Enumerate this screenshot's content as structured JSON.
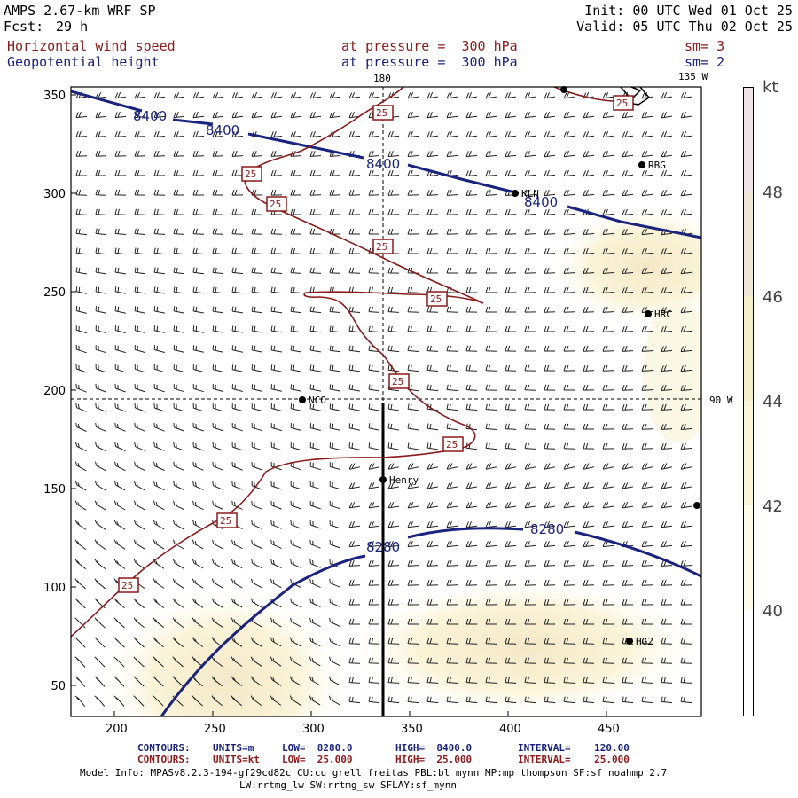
{
  "header": {
    "model": "AMPS 2.67-km WRF SP",
    "fcst_label": "Fcst:",
    "fcst_value": "29 h",
    "init": "Init: 00 UTC Wed 01 Oct 25",
    "valid": "Valid: 05 UTC Thu 02 Oct 25"
  },
  "fields": [
    {
      "name": "Horizontal wind speed",
      "level": "at pressure =  300 hPa",
      "smooth": "sm= 3",
      "color": "#8b1a1a"
    },
    {
      "name": "Geopotential height",
      "level": "at pressure =  300 hPa",
      "smooth": "sm= 2",
      "color": "#1a237e"
    }
  ],
  "map": {
    "lon_labels": [
      "180",
      "135 W",
      "90 W"
    ],
    "stations": [
      "KLN",
      "RBG",
      "HRC",
      "NCO",
      "Henry",
      "HG2"
    ],
    "height_contour_labels": [
      "8400",
      "8400",
      "8400",
      "8400",
      "8280",
      "8280"
    ],
    "speed_contour_labels": [
      "25",
      "25",
      "25",
      "25",
      "25",
      "25",
      "25",
      "25",
      "25",
      "25"
    ],
    "x_ticks": [
      "200",
      "250",
      "300",
      "350",
      "400",
      "450"
    ],
    "y_ticks": [
      "350",
      "300",
      "250",
      "200",
      "150",
      "100",
      "50"
    ]
  },
  "colorbar": {
    "unit": "kt",
    "labels": [
      "48",
      "46",
      "44",
      "42",
      "40"
    ],
    "colors": {
      "c48": "#efe3e7",
      "c46": "#f2e7d7",
      "c44": "#f7efc8",
      "c42": "#fbf6d6",
      "c40": "#fefbe9"
    }
  },
  "footer": {
    "row1": {
      "label": "CONTOURS:",
      "units": "UNITS=m",
      "low": "LOW=  8280.0",
      "high": "HIGH=  8400.0",
      "interval": "INTERVAL=    120.00"
    },
    "row2": {
      "label": "CONTOURS:",
      "units": "UNITS=kt",
      "low": "LOW=  25.000",
      "high": "HIGH=  25.000",
      "interval": "INTERVAL=    25.000"
    },
    "model_info": "Model Info: MPASv8.2.3-194-gf29cd82c CU:cu_grell_freitas PBL:bl_mynn MP:mp_thompson SF:sf_noahmp 2.7",
    "model_info2": "LW:rrtmg_lw SW:rrtmg_sw SFLAY:sf_mynn"
  }
}
